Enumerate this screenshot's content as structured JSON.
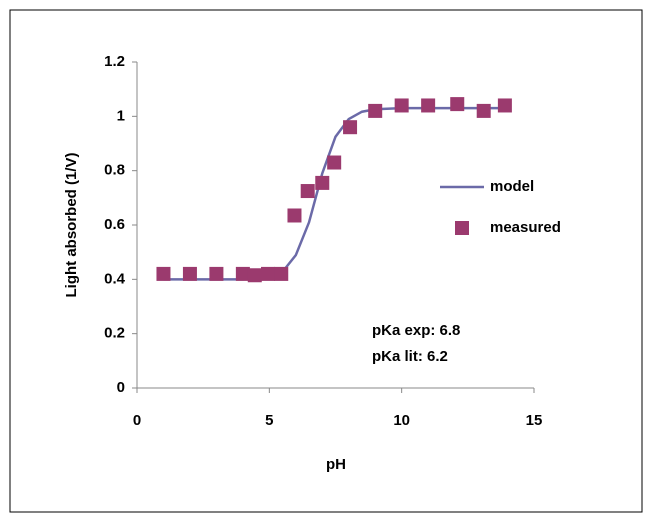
{
  "chart_data": {
    "type": "line-scatter",
    "xlabel": "pH",
    "ylabel": "Light absorbed (1/V)",
    "xlim": [
      0,
      15
    ],
    "xticks": [
      0,
      5,
      10,
      15
    ],
    "ylim": [
      0,
      1.2
    ],
    "yticks": [
      0,
      0.2,
      0.4,
      0.6,
      0.8,
      1,
      1.2
    ],
    "legend": "right",
    "annotations": [
      "pKa exp: 6.8",
      "pKa lit: 6.2"
    ],
    "series": [
      {
        "name": "model",
        "kind": "line",
        "color": "#6b6aa8",
        "x": [
          1,
          2,
          3,
          4,
          4.5,
          5,
          5.5,
          6,
          6.5,
          7,
          7.5,
          8,
          8.5,
          9,
          10,
          11,
          12,
          13,
          14
        ],
        "values": [
          0.4,
          0.4,
          0.4,
          0.4,
          0.403,
          0.41,
          0.428,
          0.489,
          0.61,
          0.79,
          0.925,
          0.99,
          1.017,
          1.026,
          1.03,
          1.03,
          1.03,
          1.03,
          1.03
        ]
      },
      {
        "name": "measured",
        "kind": "scatter",
        "color": "#9b3a6e",
        "x": [
          1,
          2,
          3,
          4,
          4.45,
          4.95,
          5.45,
          5.95,
          6.45,
          7,
          7.45,
          8.05,
          9,
          10,
          11,
          12.1,
          13.1,
          13.9
        ],
        "values": [
          0.42,
          0.42,
          0.42,
          0.42,
          0.415,
          0.42,
          0.42,
          0.635,
          0.725,
          0.755,
          0.83,
          0.96,
          1.02,
          1.04,
          1.04,
          1.045,
          1.02,
          1.04
        ]
      }
    ]
  }
}
